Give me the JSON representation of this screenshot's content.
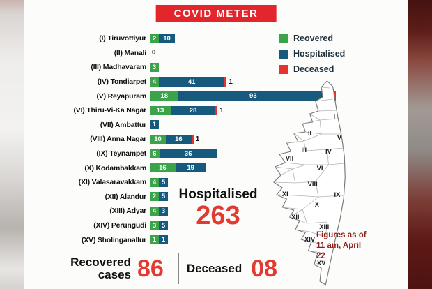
{
  "title": "COVID METER",
  "chart_data": {
    "type": "bar",
    "orientation": "horizontal",
    "title": "COVID METER",
    "categories": [
      "(I) Tiruvottiyur",
      "(II) Manali",
      "(III) Madhavaram",
      "(IV) Tondiarpet",
      "(V) Reyapuram",
      "(VI) Thiru-Vi-Ka Nagar",
      "(VII) Ambattur",
      "(VIII) Anna Nagar",
      "(IX) Teynampet",
      "(X) Kodambakkam",
      "(XI) Valasaravakkam",
      "(XII) Alandur",
      "(XIII) Adyar",
      "(XIV) Perungudi",
      "(XV) Sholinganallur"
    ],
    "series": [
      {
        "name": "Reovered",
        "color": "#3ba44a",
        "values": [
          2,
          0,
          3,
          4,
          18,
          13,
          0,
          10,
          6,
          16,
          4,
          2,
          4,
          3,
          1
        ]
      },
      {
        "name": "Hospitalised",
        "color": "#175a7e",
        "values": [
          10,
          0,
          0,
          41,
          93,
          28,
          1,
          16,
          36,
          19,
          5,
          5,
          3,
          5,
          1
        ]
      },
      {
        "name": "Deceased",
        "color": "#e8322d",
        "values": [
          0,
          0,
          0,
          1,
          5,
          1,
          0,
          1,
          0,
          0,
          0,
          0,
          0,
          0,
          0
        ]
      }
    ],
    "legend_position": "top-right",
    "grid": false
  },
  "stats": {
    "hospitalised_label": "Hospitalised",
    "hospitalised_value": "263",
    "recovered_label_line1": "Recovered",
    "recovered_label_line2": "cases",
    "recovered_value": "86",
    "deceased_label": "Deceased",
    "deceased_value": "08"
  },
  "map": {
    "zones": [
      "I",
      "II",
      "III",
      "IV",
      "V",
      "VI",
      "VII",
      "VIII",
      "IX",
      "X",
      "XI",
      "XII",
      "XIII",
      "XIV",
      "XV"
    ],
    "note": "Figures as of 11 am, April 22"
  },
  "colors": {
    "banner": "#e2262b",
    "recovered": "#3ba44a",
    "hospitalised": "#175a7e",
    "deceased": "#e8322d",
    "big_number": "#e23a30"
  }
}
